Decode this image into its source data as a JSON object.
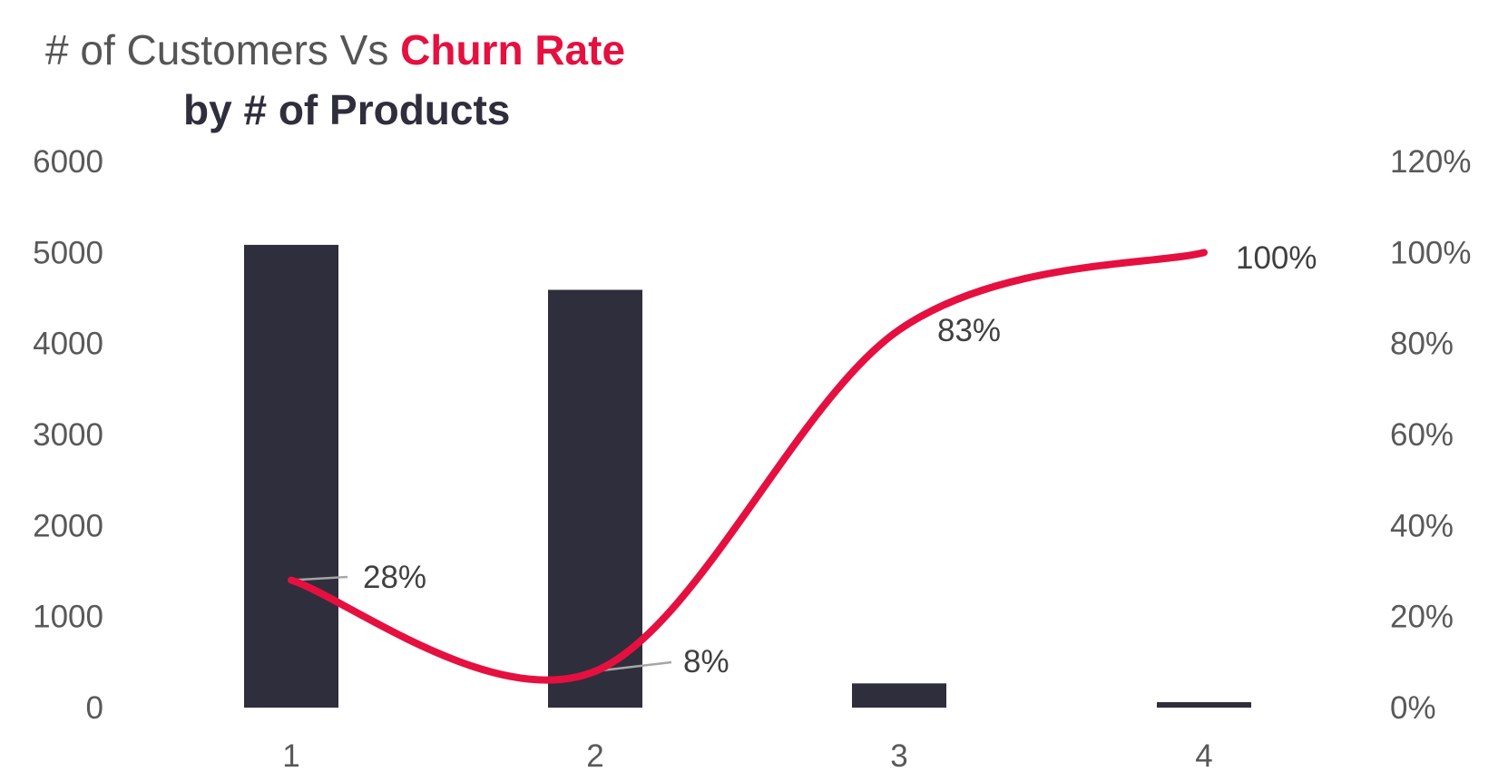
{
  "title": {
    "part1": "# of Customers Vs ",
    "part2": "Churn Rate",
    "line2": "by # of Products"
  },
  "colors": {
    "bar": "#2f2e3c",
    "line": "#e5103f",
    "leader": "#a6a6a6",
    "tick_text": "#595959"
  },
  "chart_data": {
    "type": "bar",
    "combo": "bar + smoothed line (secondary axis)",
    "categories": [
      "1",
      "2",
      "3",
      "4"
    ],
    "series": [
      {
        "values": [
          5084,
          4590,
          266,
          60
        ],
        "axis": "primary",
        "type": "bar"
      },
      {
        "values": [
          28,
          8,
          83,
          100
        ],
        "axis": "secondary",
        "type": "line",
        "labels": [
          "28%",
          "8%",
          "83%",
          "100%"
        ]
      }
    ],
    "ylim": [
      0,
      6000
    ],
    "y_ticks": [
      "0",
      "1000",
      "2000",
      "3000",
      "4000",
      "5000",
      "6000"
    ],
    "y2lim": [
      0,
      120
    ],
    "y2_ticks": [
      "0%",
      "20%",
      "40%",
      "60%",
      "80%",
      "100%",
      "120%"
    ],
    "grid": false,
    "legend": "none"
  }
}
